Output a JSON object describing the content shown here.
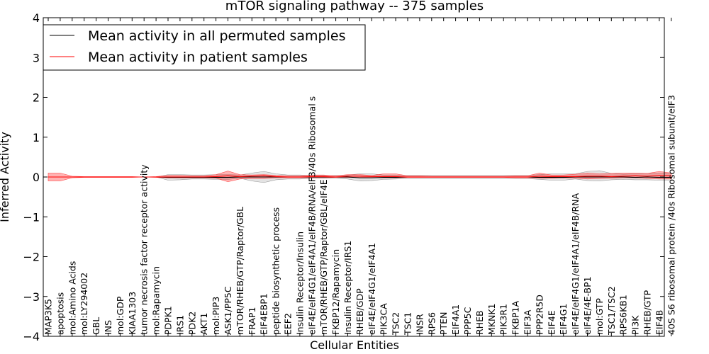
{
  "chart_data": {
    "type": "line",
    "title": "mTOR signaling pathway -- 375 samples",
    "xlabel": "Cellular Entities",
    "ylabel": "Inferred Activity",
    "ylim": [
      -4,
      4
    ],
    "yticks": [
      -4,
      -3,
      -2,
      -1,
      0,
      1,
      2,
      3,
      4
    ],
    "ytick_labels": [
      "−4",
      "−3",
      "−2",
      "−1",
      "0",
      "1",
      "2",
      "3",
      "4"
    ],
    "legend": {
      "position": "top-left",
      "entries": [
        {
          "label": "Mean activity in all permuted samples",
          "color": "#000000"
        },
        {
          "label": "Mean activity in patient samples",
          "color": "#ff0000"
        }
      ]
    },
    "categories": [
      "MAP3K5",
      "apoptosis",
      "mol:Amino Acids",
      "mol:LY294002",
      "GBL",
      "INS",
      "mol:GDP",
      "KIAA1303",
      "tumor necrosis factor receptor activity",
      "mol:Rapamycin",
      "PDPK1",
      "IRS1",
      "PDK2",
      "AKT1",
      "mol:PIP3",
      "ASK1/PP5C",
      "mTOR/RHEB/GTP/Raptor/GBL",
      "FRAP1",
      "EIF4EBP1",
      "peptide biosynthetic process",
      "EEF2",
      "Insulin Receptor/Insulin",
      "eIF4E/eIF4G1/eIF4A1/eIF4B/RNA/eIF3/40s Ribosomal s",
      "mTOR/RHEB/GTP/Raptor/GBL/eIF4E",
      "FKBP12/Rapamycin",
      "Insulin Receptor/IRS1",
      "RHEB/GDP",
      "eIF4E/eIF4G1/eIF4A1",
      "PIK3CA",
      "TSC2",
      "TSC1",
      "INSR",
      "RPS6",
      "PTEN",
      "EIF4A1",
      "PPP5C",
      "RHEB",
      "MKNK1",
      "PIK3R1",
      "FKBP1A",
      "EIF3A",
      "PPP2R5D",
      "EIF4E",
      "EIF4G1",
      "eIF4E/eIF4G1/eIF4A1/eIF4B/RNA",
      "eIF4E/4E-BP1",
      "mol:GTP",
      "TSC1/TSC2",
      "RPS6KB1",
      "PI3K",
      "RHEB/GTP",
      "EIF4B",
      "40S S6 ribosomal protein /40s Ribosomal subunit/eIF3"
    ],
    "series": [
      {
        "name": "Mean activity in all permuted samples",
        "color": "#000000",
        "values": [
          0,
          0,
          0,
          0,
          0,
          0,
          0,
          0,
          0,
          0,
          -0.01,
          -0.01,
          -0.01,
          -0.01,
          -0.01,
          -0.01,
          0,
          0,
          0,
          0,
          0,
          0,
          0,
          0,
          0,
          0,
          -0.02,
          -0.02,
          -0.01,
          -0.01,
          0,
          0,
          0,
          0,
          0,
          0,
          0,
          0,
          0,
          0,
          0,
          -0.01,
          -0.01,
          -0.01,
          0,
          0,
          0,
          0,
          0,
          -0.01,
          0,
          -0.01,
          -0.01
        ],
        "band_low": [
          0,
          0,
          0,
          0,
          0,
          0,
          0,
          0,
          0,
          0,
          -0.08,
          -0.07,
          -0.05,
          -0.05,
          -0.06,
          -0.06,
          -0.03,
          -0.1,
          -0.14,
          -0.07,
          -0.05,
          -0.05,
          -0.03,
          -0.03,
          -0.03,
          -0.05,
          -0.1,
          -0.09,
          -0.06,
          -0.05,
          -0.04,
          -0.04,
          -0.04,
          -0.04,
          -0.04,
          -0.04,
          -0.04,
          -0.04,
          -0.04,
          -0.04,
          -0.04,
          -0.06,
          -0.08,
          -0.08,
          -0.05,
          -0.09,
          -0.1,
          -0.07,
          -0.06,
          -0.07,
          -0.07,
          -0.08,
          -0.08
        ],
        "band_high": [
          0,
          0,
          0,
          0,
          0,
          0,
          0,
          0,
          0,
          0,
          0.06,
          0.06,
          0.05,
          0.05,
          0.06,
          0.06,
          0.05,
          0.1,
          0.14,
          0.08,
          0.05,
          0.05,
          0.04,
          0.04,
          0.04,
          0.05,
          0.08,
          0.08,
          0.05,
          0.05,
          0.04,
          0.04,
          0.04,
          0.04,
          0.04,
          0.04,
          0.04,
          0.04,
          0.04,
          0.04,
          0.04,
          0.06,
          0.08,
          0.08,
          0.08,
          0.14,
          0.16,
          0.09,
          0.07,
          0.08,
          0.09,
          0.1,
          0.1
        ]
      },
      {
        "name": "Mean activity in patient samples",
        "color": "#ff0000",
        "values": [
          0,
          0,
          0,
          0,
          0,
          0,
          0,
          0,
          0,
          0,
          0,
          0,
          0,
          0,
          0.01,
          0.03,
          0.01,
          0.02,
          0.03,
          0.01,
          0,
          0,
          0.01,
          0.01,
          0,
          0.02,
          0.02,
          0.01,
          0.01,
          0.01,
          0,
          0,
          0,
          0,
          0,
          0,
          0,
          0,
          0,
          0,
          0,
          0.02,
          0.01,
          0.01,
          0.01,
          0.02,
          0.02,
          0.01,
          0.02,
          0.03,
          0.02,
          0.04,
          0.03
        ],
        "band_low": [
          -0.1,
          -0.1,
          -0.02,
          -0.01,
          -0.01,
          -0.01,
          -0.01,
          -0.01,
          0,
          -0.01,
          -0.02,
          -0.02,
          -0.02,
          -0.02,
          -0.03,
          -0.12,
          -0.05,
          -0.04,
          -0.04,
          -0.02,
          -0.02,
          -0.02,
          -0.02,
          -0.02,
          -0.01,
          -0.01,
          -0.01,
          -0.01,
          -0.02,
          -0.02,
          -0.01,
          -0.01,
          -0.01,
          -0.01,
          -0.01,
          -0.01,
          -0.01,
          -0.01,
          -0.01,
          -0.02,
          -0.02,
          -0.03,
          -0.03,
          -0.02,
          -0.03,
          -0.05,
          -0.04,
          -0.03,
          -0.02,
          -0.02,
          -0.04,
          -0.05,
          -0.05
        ],
        "band_high": [
          0.1,
          0.1,
          0.02,
          0.01,
          0.01,
          0.01,
          0.01,
          0.01,
          0,
          0.01,
          0.04,
          0.04,
          0.03,
          0.03,
          0.06,
          0.15,
          0.06,
          0.05,
          0.06,
          0.04,
          0.03,
          0.03,
          0.05,
          0.05,
          0.03,
          0.06,
          0.06,
          0.04,
          0.08,
          0.08,
          0.03,
          0.03,
          0.02,
          0.02,
          0.02,
          0.02,
          0.02,
          0.02,
          0.02,
          0.03,
          0.03,
          0.1,
          0.05,
          0.05,
          0.07,
          0.1,
          0.08,
          0.09,
          0.1,
          0.1,
          0.09,
          0.14,
          0.1
        ]
      }
    ]
  }
}
